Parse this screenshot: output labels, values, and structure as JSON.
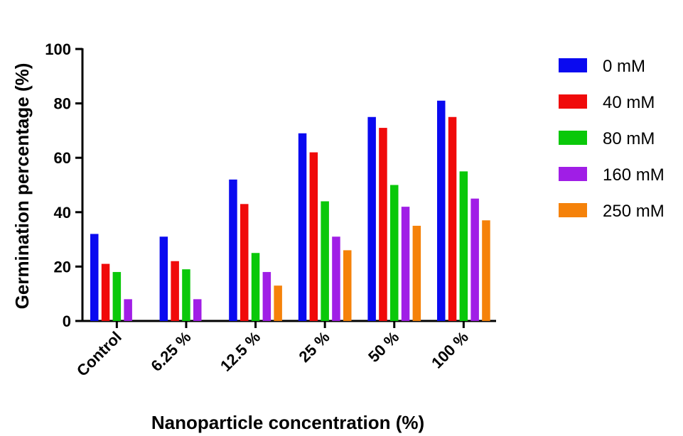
{
  "chart_data": {
    "type": "bar",
    "title": "",
    "xlabel": "Nanoparticle concentration (%)",
    "ylabel": "Germination percentage (%)",
    "ylim": [
      0,
      100
    ],
    "yticks": [
      0,
      20,
      40,
      60,
      80,
      100
    ],
    "categories": [
      "Control",
      "6.25 %",
      "12.5 %",
      "25 %",
      "50 %",
      "100 %"
    ],
    "legend_position": "right",
    "grid": false,
    "series": [
      {
        "name": "0 mM",
        "color": "#0a0af0",
        "values": [
          32,
          31,
          52,
          69,
          75,
          81
        ]
      },
      {
        "name": "40 mM",
        "color": "#f00a0a",
        "values": [
          21,
          22,
          43,
          62,
          71,
          75
        ]
      },
      {
        "name": "80 mM",
        "color": "#0ac80a",
        "values": [
          18,
          19,
          25,
          44,
          50,
          55
        ]
      },
      {
        "name": "160 mM",
        "color": "#a01ee6",
        "values": [
          8,
          8,
          18,
          31,
          42,
          45
        ]
      },
      {
        "name": "250 mM",
        "color": "#f5820a",
        "values": [
          0,
          0,
          13,
          26,
          35,
          37
        ]
      }
    ]
  }
}
